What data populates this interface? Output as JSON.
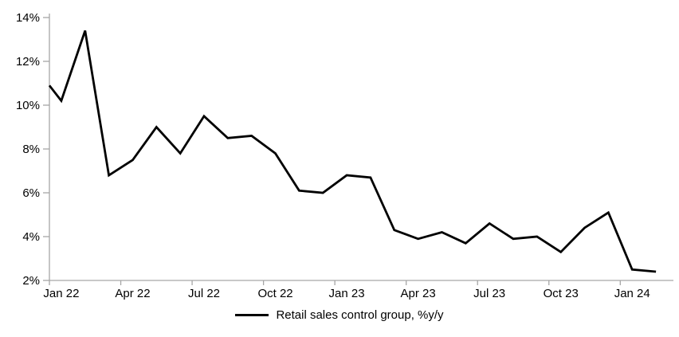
{
  "chart_data": {
    "type": "line",
    "title": "",
    "legend": "Retail sales control group, %y/y",
    "legend_position": "bottom-center",
    "grid": "off",
    "categories": [
      "Jan 22",
      "Feb 22",
      "Mar 22",
      "Apr 22",
      "May 22",
      "Jun 22",
      "Jul 22",
      "Aug 22",
      "Sep 22",
      "Oct 22",
      "Nov 22",
      "Dec 22",
      "Jan 23",
      "Feb 23",
      "Mar 23",
      "Apr 23",
      "May 23",
      "Jun 23",
      "Jul 23",
      "Aug 23",
      "Sep 23",
      "Oct 23",
      "Nov 23",
      "Dec 23",
      "Jan 24",
      "Feb 24"
    ],
    "series": [
      {
        "name": "Retail sales control group, %y/y",
        "values": [
          10.2,
          13.4,
          6.8,
          7.5,
          9.0,
          7.8,
          9.5,
          8.5,
          8.6,
          7.8,
          6.1,
          6.0,
          6.8,
          6.7,
          4.3,
          3.9,
          4.2,
          3.7,
          4.6,
          3.9,
          4.0,
          3.3,
          4.4,
          5.1,
          2.5,
          2.4
        ]
      }
    ],
    "line_enters_at_left_axis_value": 10.9,
    "ylim": [
      2,
      14
    ],
    "y_tick_step": 2,
    "y_tick_labels": [
      "2%",
      "4%",
      "6%",
      "8%",
      "10%",
      "12%",
      "14%"
    ],
    "x_tick_every": 3,
    "x_tick_labels": [
      "Jan 22",
      "Apr 22",
      "Jul 22",
      "Oct 22",
      "Jan 23",
      "Apr 23",
      "Jul 23",
      "Oct 23",
      "Jan 24"
    ],
    "colors": {
      "line": "#000000",
      "axis": "#a6a6a6",
      "text": "#000000",
      "background": "#ffffff"
    }
  }
}
